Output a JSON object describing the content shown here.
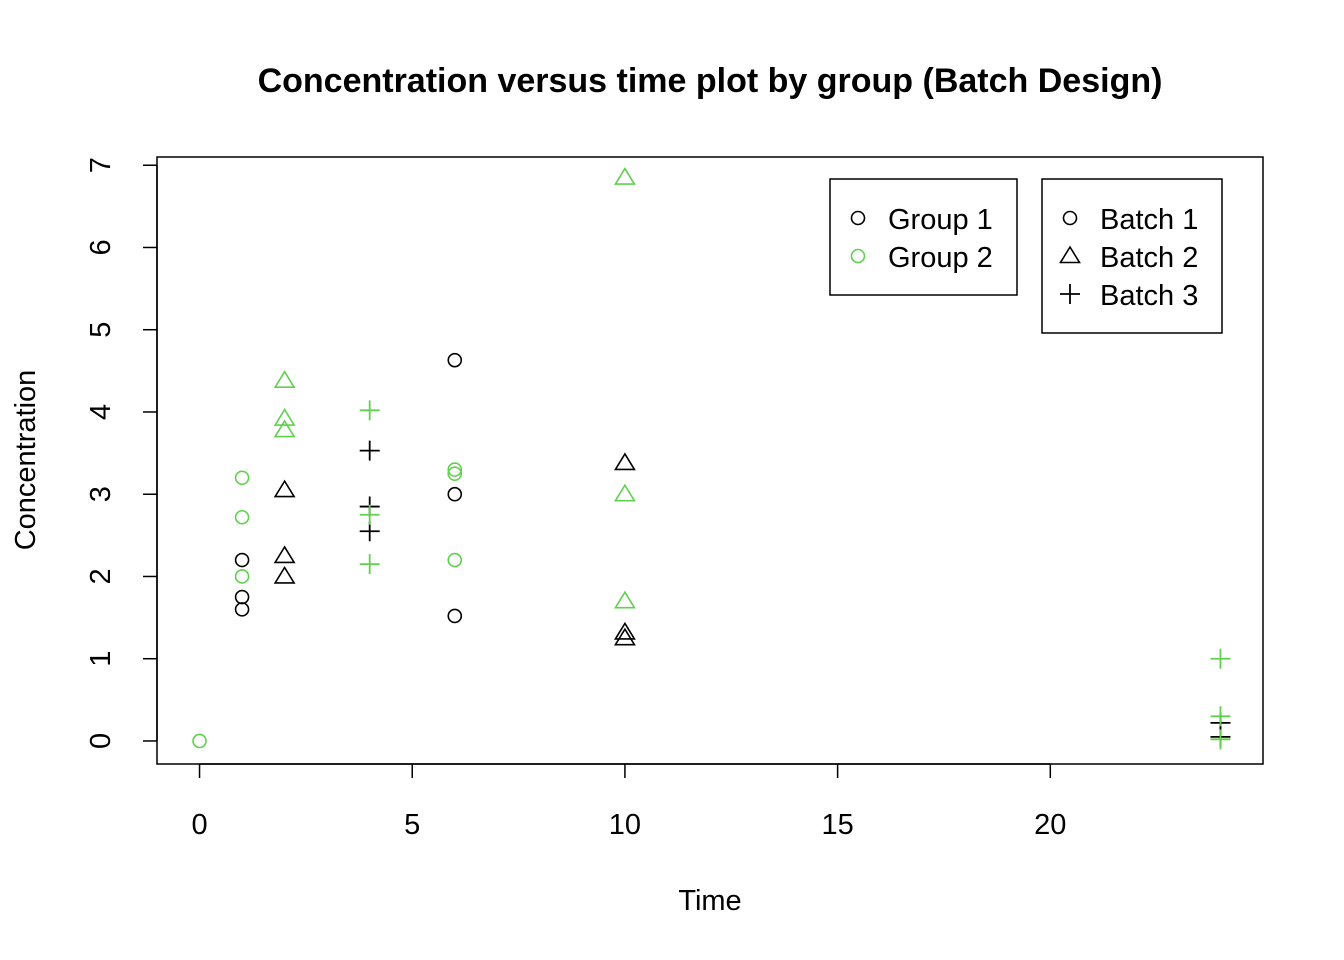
{
  "chart_data": {
    "type": "scatter",
    "title": "Concentration versus time plot by group (Batch Design)",
    "xlabel": "Time",
    "ylabel": "Concentration",
    "xlim": [
      -1,
      25
    ],
    "ylim": [
      -0.28,
      7.1
    ],
    "xticks": [
      0,
      5,
      10,
      15,
      20
    ],
    "yticks": [
      0,
      1,
      2,
      3,
      4,
      5,
      6,
      7
    ],
    "grid": false,
    "colors": {
      "group1": "#000000",
      "group2": "#61D04F"
    },
    "legend_group": {
      "placement": "top-right",
      "entries": [
        {
          "label": "Group 1",
          "symbol": "circle",
          "color": "#000000"
        },
        {
          "label": "Group 2",
          "symbol": "circle",
          "color": "#61D04F"
        }
      ]
    },
    "legend_batch": {
      "placement": "top-right",
      "entries": [
        {
          "label": "Batch 1",
          "symbol": "circle",
          "color": "#000000"
        },
        {
          "label": "Batch 2",
          "symbol": "triangle",
          "color": "#000000"
        },
        {
          "label": "Batch 3",
          "symbol": "plus",
          "color": "#000000"
        }
      ]
    },
    "points": [
      {
        "x": 0,
        "y": 0,
        "group": 2,
        "batch": 1
      },
      {
        "x": 1,
        "y": 1.6,
        "group": 1,
        "batch": 1
      },
      {
        "x": 1,
        "y": 1.75,
        "group": 1,
        "batch": 1
      },
      {
        "x": 1,
        "y": 2.2,
        "group": 1,
        "batch": 1
      },
      {
        "x": 1,
        "y": 2.0,
        "group": 2,
        "batch": 1
      },
      {
        "x": 1,
        "y": 2.72,
        "group": 2,
        "batch": 1
      },
      {
        "x": 1,
        "y": 3.2,
        "group": 2,
        "batch": 1
      },
      {
        "x": 2,
        "y": 2.0,
        "group": 1,
        "batch": 2
      },
      {
        "x": 2,
        "y": 2.25,
        "group": 1,
        "batch": 2
      },
      {
        "x": 2,
        "y": 3.05,
        "group": 1,
        "batch": 2
      },
      {
        "x": 2,
        "y": 3.78,
        "group": 2,
        "batch": 2
      },
      {
        "x": 2,
        "y": 3.92,
        "group": 2,
        "batch": 2
      },
      {
        "x": 2,
        "y": 4.38,
        "group": 2,
        "batch": 2
      },
      {
        "x": 4,
        "y": 2.55,
        "group": 1,
        "batch": 3
      },
      {
        "x": 4,
        "y": 2.85,
        "group": 1,
        "batch": 3
      },
      {
        "x": 4,
        "y": 3.53,
        "group": 1,
        "batch": 3
      },
      {
        "x": 4,
        "y": 2.15,
        "group": 2,
        "batch": 3
      },
      {
        "x": 4,
        "y": 2.75,
        "group": 2,
        "batch": 3
      },
      {
        "x": 4,
        "y": 4.02,
        "group": 2,
        "batch": 3
      },
      {
        "x": 6,
        "y": 1.52,
        "group": 1,
        "batch": 1
      },
      {
        "x": 6,
        "y": 3.0,
        "group": 1,
        "batch": 1
      },
      {
        "x": 6,
        "y": 4.63,
        "group": 1,
        "batch": 1
      },
      {
        "x": 6,
        "y": 2.2,
        "group": 2,
        "batch": 1
      },
      {
        "x": 6,
        "y": 3.25,
        "group": 2,
        "batch": 1
      },
      {
        "x": 6,
        "y": 3.3,
        "group": 2,
        "batch": 1
      },
      {
        "x": 10,
        "y": 1.25,
        "group": 1,
        "batch": 2
      },
      {
        "x": 10,
        "y": 1.32,
        "group": 1,
        "batch": 2
      },
      {
        "x": 10,
        "y": 3.38,
        "group": 1,
        "batch": 2
      },
      {
        "x": 10,
        "y": 1.7,
        "group": 2,
        "batch": 2
      },
      {
        "x": 10,
        "y": 3.0,
        "group": 2,
        "batch": 2
      },
      {
        "x": 10,
        "y": 6.85,
        "group": 2,
        "batch": 2
      },
      {
        "x": 24,
        "y": 0.05,
        "group": 1,
        "batch": 3
      },
      {
        "x": 24,
        "y": 0.22,
        "group": 1,
        "batch": 3
      },
      {
        "x": 24,
        "y": 0.02,
        "group": 2,
        "batch": 3
      },
      {
        "x": 24,
        "y": 0.3,
        "group": 2,
        "batch": 3
      },
      {
        "x": 24,
        "y": 1.0,
        "group": 2,
        "batch": 3
      }
    ]
  }
}
